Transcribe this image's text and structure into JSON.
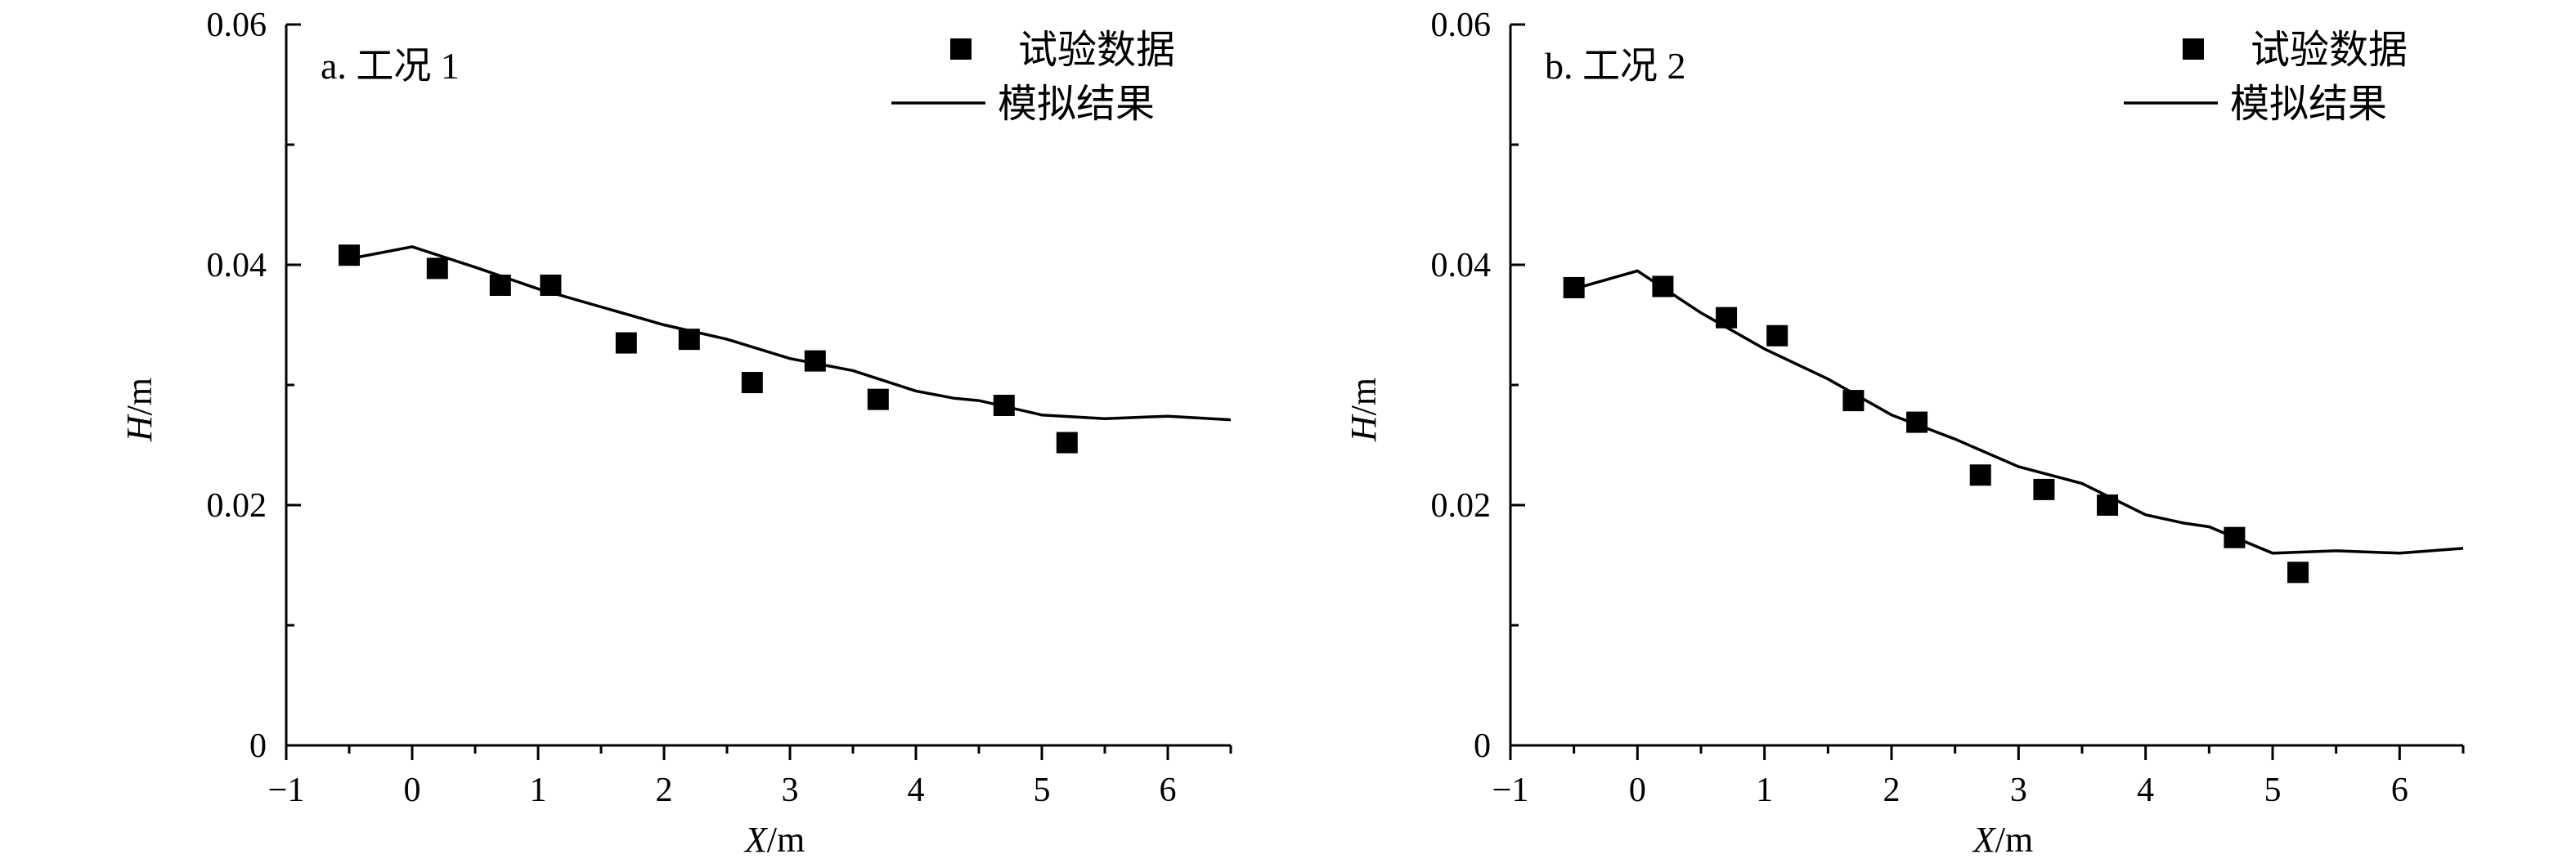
{
  "chart_data": [
    {
      "type": "scatter",
      "title": "a. 工况 1",
      "xlabel_var": "X",
      "xlabel_unit": "/m",
      "ylabel_var": "H",
      "ylabel_unit": "/m",
      "xlim": [
        -1,
        6.5
      ],
      "ylim": [
        0,
        0.06
      ],
      "xticks": [
        -1,
        0,
        1,
        2,
        3,
        4,
        5,
        6
      ],
      "xtick_labels": [
        "−1",
        "0",
        "1",
        "2",
        "3",
        "4",
        "5",
        "6"
      ],
      "yticks": [
        0,
        0.02,
        0.04,
        0.06
      ],
      "ytick_labels": [
        "0",
        "0.02",
        "0.04",
        "0.06"
      ],
      "legend": [
        "试验数据",
        "模拟结果"
      ],
      "legend_position": "top-right",
      "series": [
        {
          "name": "试验数据",
          "kind": "markers",
          "x": [
            -0.5,
            0.2,
            0.7,
            1.1,
            1.7,
            2.2,
            2.7,
            3.2,
            3.7,
            4.7,
            5.2
          ],
          "y": [
            0.0408,
            0.0397,
            0.0383,
            0.0383,
            0.0335,
            0.0338,
            0.0302,
            0.032,
            0.0288,
            0.0283,
            0.0252
          ]
        },
        {
          "name": "模拟结果",
          "kind": "line",
          "x": [
            -0.5,
            0.0,
            0.5,
            1.0,
            1.5,
            2.0,
            2.5,
            3.0,
            3.5,
            4.0,
            4.3,
            4.5,
            5.0,
            5.5,
            6.0,
            6.5
          ],
          "y": [
            0.0405,
            0.0415,
            0.0398,
            0.038,
            0.0365,
            0.035,
            0.0338,
            0.0322,
            0.0312,
            0.0295,
            0.0289,
            0.0287,
            0.0275,
            0.0272,
            0.0274,
            0.0271
          ]
        }
      ]
    },
    {
      "type": "scatter",
      "title": "b. 工况 2",
      "xlabel_var": "X",
      "xlabel_unit": "/m",
      "ylabel_var": "H",
      "ylabel_unit": "/m",
      "xlim": [
        -1,
        6.5
      ],
      "ylim": [
        0,
        0.06
      ],
      "xticks": [
        -1,
        0,
        1,
        2,
        3,
        4,
        5,
        6
      ],
      "xtick_labels": [
        "−1",
        "0",
        "1",
        "2",
        "3",
        "4",
        "5",
        "6"
      ],
      "yticks": [
        0,
        0.02,
        0.04,
        0.06
      ],
      "ytick_labels": [
        "0",
        "0.02",
        "0.04",
        "0.06"
      ],
      "legend": [
        "试验数据",
        "模拟结果"
      ],
      "legend_position": "top-right",
      "series": [
        {
          "name": "试验数据",
          "kind": "markers",
          "x": [
            -0.5,
            0.2,
            0.7,
            1.1,
            1.7,
            2.2,
            2.7,
            3.2,
            3.7,
            4.7,
            5.2
          ],
          "y": [
            0.0381,
            0.0382,
            0.0356,
            0.0341,
            0.0287,
            0.0269,
            0.0225,
            0.0213,
            0.02,
            0.0173,
            0.0144
          ]
        },
        {
          "name": "模拟结果",
          "kind": "line",
          "x": [
            -0.5,
            0.0,
            0.5,
            1.0,
            1.5,
            2.0,
            2.5,
            3.0,
            3.5,
            4.0,
            4.3,
            4.5,
            5.0,
            5.5,
            6.0,
            6.5
          ],
          "y": [
            0.038,
            0.0395,
            0.036,
            0.033,
            0.0305,
            0.0275,
            0.0255,
            0.0232,
            0.0218,
            0.0192,
            0.0185,
            0.0182,
            0.016,
            0.0162,
            0.016,
            0.0164
          ]
        }
      ]
    }
  ]
}
